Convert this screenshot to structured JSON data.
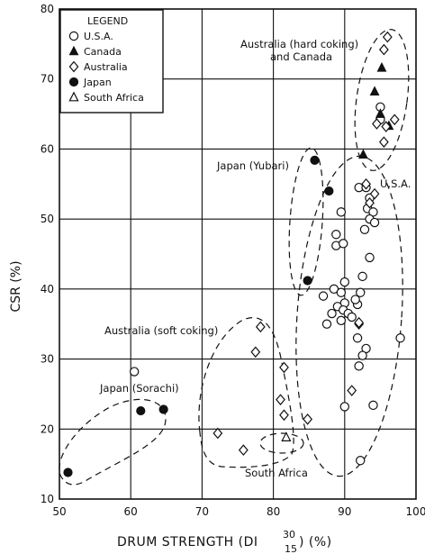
{
  "chart_data": {
    "type": "scatter",
    "title": "",
    "xlabel": {
      "main": "DRUM STRENGTH (DI",
      "sup": "30",
      "sub": "15",
      "unit": ") (%)"
    },
    "ylabel": "CSR (%)",
    "xlim": [
      50,
      100
    ],
    "ylim": [
      10,
      80
    ],
    "xticks": [
      50,
      60,
      70,
      80,
      90,
      100
    ],
    "yticks": [
      10,
      20,
      30,
      40,
      50,
      60,
      70,
      80
    ],
    "grid": true,
    "legend": {
      "title": "LEGEND",
      "placement": "top-left",
      "entries": [
        {
          "name": "U.S.A.",
          "marker": "open-circle"
        },
        {
          "name": "Canada",
          "marker": "filled-triangle"
        },
        {
          "name": "Australia",
          "marker": "open-diamond"
        },
        {
          "name": "Japan",
          "marker": "filled-circle"
        },
        {
          "name": "South Africa",
          "marker": "open-triangle"
        }
      ]
    },
    "series": [
      {
        "name": "U.S.A.",
        "marker": "open-circle",
        "points": [
          [
            60.5,
            28.2
          ],
          [
            89.5,
            51.0
          ],
          [
            88.8,
            47.8
          ],
          [
            88.8,
            46.2
          ],
          [
            89.8,
            46.5
          ],
          [
            92.0,
            54.5
          ],
          [
            93.0,
            54.5
          ],
          [
            93.5,
            53.0
          ],
          [
            93.2,
            51.5
          ],
          [
            94.0,
            51.0
          ],
          [
            93.5,
            50.0
          ],
          [
            94.2,
            49.5
          ],
          [
            92.8,
            48.5
          ],
          [
            93.5,
            44.5
          ],
          [
            92.5,
            41.8
          ],
          [
            90.0,
            41.0
          ],
          [
            88.5,
            40.0
          ],
          [
            87.0,
            39.0
          ],
          [
            89.5,
            39.5
          ],
          [
            90.0,
            38.0
          ],
          [
            89.0,
            37.5
          ],
          [
            89.8,
            37.0
          ],
          [
            88.2,
            36.5
          ],
          [
            90.5,
            36.5
          ],
          [
            91.0,
            36.0
          ],
          [
            91.8,
            37.8
          ],
          [
            92.2,
            39.5
          ],
          [
            91.5,
            38.5
          ],
          [
            89.5,
            35.5
          ],
          [
            87.5,
            35.0
          ],
          [
            91.8,
            33.0
          ],
          [
            93.0,
            31.5
          ],
          [
            92.5,
            30.5
          ],
          [
            92.0,
            29.0
          ],
          [
            90.0,
            23.2
          ],
          [
            94.0,
            23.4
          ],
          [
            97.8,
            33.0
          ],
          [
            92.2,
            15.5
          ],
          [
            95.0,
            66.0
          ],
          [
            95.0,
            64.2
          ]
        ]
      },
      {
        "name": "Canada",
        "marker": "filled-triangle",
        "points": [
          [
            95.2,
            71.6
          ],
          [
            94.2,
            68.2
          ],
          [
            95.0,
            65.0
          ],
          [
            96.2,
            63.3
          ],
          [
            92.6,
            59.2
          ]
        ]
      },
      {
        "name": "Australia",
        "marker": "open-diamond",
        "points": [
          [
            96.0,
            76.0
          ],
          [
            95.5,
            74.2
          ],
          [
            97.0,
            64.2
          ],
          [
            95.8,
            63.2
          ],
          [
            94.5,
            63.6
          ],
          [
            95.5,
            61.0
          ],
          [
            93.0,
            55.0
          ],
          [
            94.2,
            53.6
          ],
          [
            93.5,
            52.3
          ],
          [
            78.2,
            34.6
          ],
          [
            77.5,
            31.0
          ],
          [
            92.0,
            35.0
          ],
          [
            92.0,
            35.2
          ],
          [
            81.5,
            28.8
          ],
          [
            81.0,
            24.2
          ],
          [
            81.5,
            22.0
          ],
          [
            84.8,
            21.4
          ],
          [
            72.2,
            19.4
          ],
          [
            75.8,
            17.0
          ],
          [
            91.0,
            25.5
          ]
        ]
      },
      {
        "name": "Japan",
        "marker": "filled-circle",
        "points": [
          [
            85.8,
            58.4
          ],
          [
            87.8,
            54.0
          ],
          [
            84.8,
            41.2
          ],
          [
            61.4,
            22.6
          ],
          [
            64.6,
            22.8
          ],
          [
            51.2,
            13.8
          ]
        ]
      },
      {
        "name": "South Africa",
        "marker": "open-triangle",
        "points": [
          [
            81.8,
            18.8
          ]
        ]
      }
    ],
    "annotations": [
      {
        "id": "aus-hard",
        "lines": [
          "Australia (hard coking)",
          "and Canada"
        ]
      },
      {
        "id": "japan-yubari",
        "lines": [
          "Japan (Yubari)"
        ]
      },
      {
        "id": "usa",
        "lines": [
          "U.S.A."
        ]
      },
      {
        "id": "aus-soft",
        "lines": [
          "Australia (soft coking)"
        ]
      },
      {
        "id": "japan-sorachi",
        "lines": [
          "Japan (Sorachi)"
        ]
      },
      {
        "id": "south-africa",
        "lines": [
          "South Africa"
        ]
      }
    ]
  }
}
